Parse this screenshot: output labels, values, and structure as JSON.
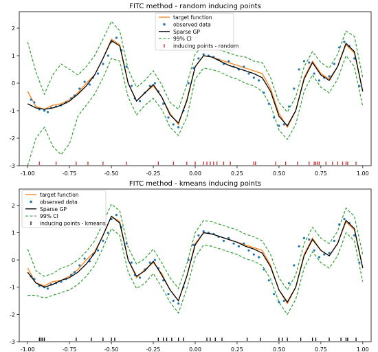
{
  "chart_data": [
    {
      "type": "line",
      "title": "FITC method - random inducing points",
      "xlabel": "",
      "ylabel": "",
      "xlim": [
        -1.05,
        1.05
      ],
      "ylim": [
        -3,
        2.6
      ],
      "xticks": [
        "-1.00",
        "-0.75",
        "-0.50",
        "-0.25",
        "0.00",
        "0.25",
        "0.50",
        "0.75",
        "1.00"
      ],
      "yticks": [
        "-3",
        "-2",
        "-1",
        "0",
        "1",
        "2"
      ],
      "grid": false,
      "legend": {
        "placement": "top-center",
        "entries": [
          "target function",
          "observed data",
          "Sparse GP",
          "99% CI",
          "inducing points - random"
        ]
      },
      "series": [
        {
          "name": "target function",
          "color": "#ff7f0e",
          "x": [
            -1.0,
            -0.95,
            -0.9,
            -0.85,
            -0.8,
            -0.75,
            -0.7,
            -0.65,
            -0.6,
            -0.55,
            -0.5,
            -0.45,
            -0.4,
            -0.35,
            -0.3,
            -0.25,
            -0.2,
            -0.15,
            -0.1,
            -0.05,
            0.0,
            0.05,
            0.1,
            0.15,
            0.2,
            0.25,
            0.3,
            0.35,
            0.4,
            0.45,
            0.5,
            0.55,
            0.6,
            0.65,
            0.7,
            0.75,
            0.8,
            0.85,
            0.9,
            0.95,
            1.0
          ],
          "y": [
            -0.3,
            -0.85,
            -0.95,
            -0.8,
            -0.75,
            -0.6,
            -0.35,
            0.0,
            0.3,
            0.9,
            1.6,
            1.4,
            0.0,
            -0.65,
            -0.35,
            -0.1,
            -0.5,
            -1.1,
            -1.5,
            -0.6,
            0.6,
            1.0,
            0.95,
            0.85,
            0.75,
            0.65,
            0.55,
            0.45,
            0.35,
            -0.2,
            -1.1,
            -1.6,
            -1.0,
            0.2,
            0.8,
            0.35,
            0.15,
            0.6,
            1.4,
            1.1,
            -0.3
          ]
        },
        {
          "name": "Sparse GP",
          "color": "#000000",
          "x": [
            -1.0,
            -0.95,
            -0.9,
            -0.85,
            -0.8,
            -0.75,
            -0.7,
            -0.65,
            -0.6,
            -0.55,
            -0.5,
            -0.45,
            -0.4,
            -0.35,
            -0.3,
            -0.25,
            -0.2,
            -0.15,
            -0.1,
            -0.05,
            0.0,
            0.05,
            0.1,
            0.15,
            0.2,
            0.25,
            0.3,
            0.35,
            0.4,
            0.45,
            0.5,
            0.55,
            0.6,
            0.65,
            0.7,
            0.75,
            0.8,
            0.85,
            0.9,
            0.95,
            1.0
          ],
          "y": [
            -0.75,
            -0.9,
            -0.95,
            -0.9,
            -0.8,
            -0.65,
            -0.4,
            -0.1,
            0.3,
            0.9,
            1.55,
            1.35,
            0.0,
            -0.65,
            -0.35,
            -0.05,
            -0.5,
            -1.15,
            -1.45,
            -0.65,
            0.6,
            1.0,
            0.95,
            0.8,
            0.65,
            0.55,
            0.45,
            0.35,
            0.2,
            -0.3,
            -1.2,
            -1.55,
            -1.0,
            0.15,
            0.75,
            0.3,
            0.1,
            0.6,
            1.45,
            1.15,
            -0.3
          ]
        },
        {
          "name": "99% CI",
          "color": "#2ca02c",
          "style": "dashed",
          "x": [
            -1.0,
            -0.95,
            -0.9,
            -0.85,
            -0.8,
            -0.75,
            -0.7,
            -0.65,
            -0.6,
            -0.55,
            -0.5,
            -0.45,
            -0.4,
            -0.35,
            -0.3,
            -0.25,
            -0.2,
            -0.15,
            -0.1,
            -0.05,
            0.0,
            0.05,
            0.1,
            0.15,
            0.2,
            0.25,
            0.3,
            0.35,
            0.4,
            0.45,
            0.5,
            0.55,
            0.6,
            0.65,
            0.7,
            0.75,
            0.8,
            0.85,
            0.9,
            0.95,
            1.0
          ],
          "upper": [
            1.5,
            0.4,
            -0.4,
            0.3,
            0.7,
            0.5,
            0.3,
            0.6,
            1.0,
            1.6,
            2.25,
            1.9,
            0.5,
            -0.15,
            0.1,
            0.45,
            -0.05,
            -0.7,
            -0.95,
            -0.05,
            1.05,
            1.4,
            1.35,
            1.2,
            1.1,
            1.0,
            0.95,
            0.8,
            0.75,
            0.2,
            -0.7,
            -1.05,
            -0.5,
            0.6,
            1.15,
            0.75,
            0.55,
            1.05,
            1.9,
            1.7,
            0.2
          ],
          "lower": [
            -3.0,
            -2.0,
            -1.6,
            -2.3,
            -2.6,
            -2.2,
            -1.2,
            -0.8,
            -0.4,
            0.2,
            0.9,
            0.8,
            -0.5,
            -1.15,
            -0.8,
            -0.55,
            -0.95,
            -1.6,
            -1.9,
            -1.25,
            0.15,
            0.55,
            0.5,
            0.4,
            0.25,
            0.15,
            0.0,
            -0.1,
            -0.3,
            -0.8,
            -1.7,
            -2.05,
            -1.5,
            -0.3,
            0.3,
            -0.15,
            -0.35,
            0.15,
            1.0,
            0.6,
            -0.85
          ]
        }
      ],
      "observed_data": {
        "name": "observed data",
        "color": "#1f77b4",
        "x": [
          -0.98,
          -0.96,
          -0.93,
          -0.9,
          -0.88,
          -0.86,
          -0.83,
          -0.8,
          -0.77,
          -0.74,
          -0.72,
          -0.69,
          -0.66,
          -0.63,
          -0.61,
          -0.58,
          -0.55,
          -0.52,
          -0.5,
          -0.47,
          -0.44,
          -0.41,
          -0.38,
          -0.36,
          -0.33,
          -0.3,
          -0.27,
          -0.24,
          -0.22,
          -0.19,
          -0.16,
          -0.13,
          -0.1,
          -0.07,
          -0.04,
          -0.01,
          0.02,
          0.05,
          0.08,
          0.11,
          0.14,
          0.17,
          0.2,
          0.23,
          0.26,
          0.29,
          0.32,
          0.35,
          0.38,
          0.41,
          0.44,
          0.47,
          0.5,
          0.53,
          0.56,
          0.59,
          0.62,
          0.65,
          0.68,
          0.71,
          0.74,
          0.77,
          0.8,
          0.83,
          0.86,
          0.89,
          0.92,
          0.95,
          0.98
        ],
        "y": [
          -0.6,
          -0.7,
          -0.95,
          -1.0,
          -1.05,
          -0.9,
          -0.85,
          -0.8,
          -0.7,
          -0.55,
          -0.45,
          -0.2,
          0.05,
          -0.05,
          0.2,
          0.35,
          0.7,
          1.0,
          1.5,
          1.65,
          1.2,
          0.6,
          -0.1,
          -0.55,
          -0.65,
          -0.35,
          -0.1,
          0.0,
          -0.3,
          -0.75,
          -1.25,
          -1.5,
          -1.6,
          -1.0,
          0.0,
          0.55,
          0.9,
          1.05,
          1.0,
          0.95,
          0.85,
          0.7,
          0.8,
          0.6,
          0.5,
          0.6,
          0.35,
          0.2,
          0.1,
          -0.35,
          -0.75,
          -1.25,
          -1.55,
          -1.5,
          -0.85,
          -0.2,
          0.5,
          0.8,
          0.75,
          0.35,
          0.1,
          0.2,
          0.25,
          0.7,
          1.3,
          1.5,
          1.35,
          0.9,
          -0.1
        ]
      },
      "inducing_points": {
        "name": "inducing points - random",
        "color": "#d62728",
        "x": [
          -0.93,
          -0.83,
          -0.71,
          -0.64,
          -0.55,
          -0.41,
          -0.22,
          -0.13,
          -0.05,
          0.0,
          0.05,
          0.07,
          0.09,
          0.11,
          0.13,
          0.17,
          0.21,
          0.35,
          0.36,
          0.48,
          0.54,
          0.61,
          0.68,
          0.71,
          0.72,
          0.73,
          0.74,
          0.78,
          0.82,
          0.85,
          0.88,
          0.9,
          0.91,
          0.96
        ]
      }
    },
    {
      "type": "line",
      "title": "FITC method - kmeans inducing points",
      "xlabel": "",
      "ylabel": "",
      "xlim": [
        -1.05,
        1.05
      ],
      "ylim": [
        -3,
        2.6
      ],
      "xticks": [
        "-1.00",
        "-0.75",
        "-0.50",
        "-0.25",
        "0.00",
        "0.25",
        "0.50",
        "0.75",
        "1.00"
      ],
      "yticks": [
        "-3",
        "-2",
        "-1",
        "0",
        "1",
        "2"
      ],
      "grid": false,
      "legend": {
        "placement": "top-left",
        "entries": [
          "target function",
          "observed data",
          "Sparse GP",
          "99% CI",
          "inducing points - kmeans"
        ]
      },
      "series": [
        {
          "name": "target function",
          "color": "#ff7f0e",
          "x": [
            -1.0,
            -0.95,
            -0.9,
            -0.85,
            -0.8,
            -0.75,
            -0.7,
            -0.65,
            -0.6,
            -0.55,
            -0.5,
            -0.45,
            -0.4,
            -0.35,
            -0.3,
            -0.25,
            -0.2,
            -0.15,
            -0.1,
            -0.05,
            0.0,
            0.05,
            0.1,
            0.15,
            0.2,
            0.25,
            0.3,
            0.35,
            0.4,
            0.45,
            0.5,
            0.55,
            0.6,
            0.65,
            0.7,
            0.75,
            0.8,
            0.85,
            0.9,
            0.95,
            1.0
          ],
          "y": [
            -0.3,
            -0.85,
            -0.95,
            -0.8,
            -0.75,
            -0.6,
            -0.35,
            0.0,
            0.3,
            0.9,
            1.6,
            1.4,
            0.0,
            -0.65,
            -0.35,
            -0.1,
            -0.5,
            -1.1,
            -1.5,
            -0.6,
            0.6,
            1.0,
            0.95,
            0.85,
            0.75,
            0.65,
            0.55,
            0.45,
            0.35,
            -0.2,
            -1.1,
            -1.6,
            -1.0,
            0.2,
            0.8,
            0.35,
            0.15,
            0.6,
            1.4,
            1.1,
            -0.3
          ]
        },
        {
          "name": "Sparse GP",
          "color": "#000000",
          "x": [
            -1.0,
            -0.95,
            -0.9,
            -0.85,
            -0.8,
            -0.75,
            -0.7,
            -0.65,
            -0.6,
            -0.55,
            -0.5,
            -0.45,
            -0.4,
            -0.35,
            -0.3,
            -0.25,
            -0.2,
            -0.15,
            -0.1,
            -0.05,
            0.0,
            0.05,
            0.1,
            0.15,
            0.2,
            0.25,
            0.3,
            0.35,
            0.4,
            0.45,
            0.5,
            0.55,
            0.6,
            0.65,
            0.7,
            0.75,
            0.8,
            0.85,
            0.9,
            0.95,
            1.0
          ],
          "y": [
            -0.45,
            -0.85,
            -1.0,
            -0.9,
            -0.75,
            -0.65,
            -0.45,
            -0.15,
            0.25,
            0.9,
            1.6,
            1.35,
            0.0,
            -0.6,
            -0.4,
            -0.05,
            -0.55,
            -1.1,
            -1.5,
            -0.6,
            0.55,
            1.0,
            0.95,
            0.85,
            0.75,
            0.65,
            0.5,
            0.4,
            0.25,
            -0.25,
            -1.1,
            -1.55,
            -1.0,
            0.15,
            0.75,
            0.35,
            0.15,
            0.6,
            1.45,
            1.15,
            -0.3
          ]
        },
        {
          "name": "99% CI",
          "color": "#2ca02c",
          "style": "dashed",
          "x": [
            -1.0,
            -0.95,
            -0.9,
            -0.85,
            -0.8,
            -0.75,
            -0.7,
            -0.65,
            -0.6,
            -0.55,
            -0.5,
            -0.45,
            -0.4,
            -0.35,
            -0.3,
            -0.25,
            -0.2,
            -0.15,
            -0.1,
            -0.05,
            0.0,
            0.05,
            0.1,
            0.15,
            0.2,
            0.25,
            0.3,
            0.35,
            0.4,
            0.45,
            0.5,
            0.55,
            0.6,
            0.65,
            0.7,
            0.75,
            0.8,
            0.85,
            0.9,
            0.95,
            1.0
          ],
          "upper": [
            0.4,
            -0.4,
            -0.6,
            -0.5,
            -0.3,
            -0.2,
            0.0,
            0.3,
            0.7,
            1.35,
            2.05,
            1.8,
            0.45,
            -0.15,
            0.05,
            0.4,
            -0.1,
            -0.65,
            -1.05,
            -0.15,
            1.0,
            1.45,
            1.4,
            1.3,
            1.2,
            1.1,
            0.95,
            0.85,
            0.7,
            0.2,
            -0.65,
            -1.1,
            -0.55,
            0.6,
            1.2,
            0.8,
            0.6,
            1.05,
            1.9,
            1.6,
            0.2
          ],
          "lower": [
            -1.3,
            -1.3,
            -1.4,
            -1.3,
            -1.2,
            -1.1,
            -0.9,
            -0.6,
            -0.2,
            0.45,
            1.15,
            0.9,
            -0.45,
            -1.05,
            -0.85,
            -0.5,
            -1.0,
            -1.55,
            -1.95,
            -1.05,
            0.1,
            0.55,
            0.5,
            0.4,
            0.3,
            0.2,
            0.05,
            -0.05,
            -0.2,
            -0.7,
            -1.55,
            -2.0,
            -1.45,
            -0.3,
            0.3,
            -0.1,
            -0.3,
            0.15,
            1.0,
            0.7,
            -0.8
          ]
        }
      ],
      "observed_data": {
        "name": "observed data",
        "color": "#1f77b4",
        "x": [
          -0.98,
          -0.96,
          -0.93,
          -0.9,
          -0.88,
          -0.86,
          -0.83,
          -0.8,
          -0.77,
          -0.74,
          -0.72,
          -0.69,
          -0.66,
          -0.63,
          -0.61,
          -0.58,
          -0.55,
          -0.52,
          -0.5,
          -0.47,
          -0.44,
          -0.41,
          -0.38,
          -0.36,
          -0.33,
          -0.3,
          -0.27,
          -0.24,
          -0.22,
          -0.19,
          -0.16,
          -0.13,
          -0.1,
          -0.07,
          -0.04,
          -0.01,
          0.02,
          0.05,
          0.08,
          0.11,
          0.14,
          0.17,
          0.2,
          0.23,
          0.26,
          0.29,
          0.32,
          0.35,
          0.38,
          0.41,
          0.44,
          0.47,
          0.5,
          0.53,
          0.56,
          0.59,
          0.62,
          0.65,
          0.68,
          0.71,
          0.74,
          0.77,
          0.8,
          0.83,
          0.86,
          0.89,
          0.92,
          0.95,
          0.98
        ],
        "y": [
          -0.6,
          -0.7,
          -0.95,
          -1.0,
          -1.05,
          -0.9,
          -0.85,
          -0.8,
          -0.7,
          -0.55,
          -0.45,
          -0.2,
          0.05,
          -0.05,
          0.2,
          0.35,
          0.7,
          1.0,
          1.5,
          1.65,
          1.2,
          0.6,
          -0.1,
          -0.55,
          -0.65,
          -0.35,
          -0.1,
          0.0,
          -0.3,
          -0.75,
          -1.25,
          -1.5,
          -1.6,
          -1.0,
          0.0,
          0.55,
          0.9,
          1.05,
          1.0,
          0.95,
          0.85,
          0.7,
          0.8,
          0.6,
          0.5,
          0.6,
          0.35,
          0.2,
          0.1,
          -0.35,
          -0.75,
          -1.25,
          -1.55,
          -1.5,
          -0.85,
          -0.2,
          0.5,
          0.8,
          0.75,
          0.35,
          0.1,
          0.2,
          0.25,
          0.7,
          1.3,
          1.5,
          1.35,
          0.9,
          -0.1
        ]
      },
      "inducing_points": {
        "name": "inducing points - kmeans",
        "color": "#000000",
        "x": [
          -0.93,
          -0.92,
          -0.91,
          -0.9,
          -0.71,
          -0.62,
          -0.55,
          -0.5,
          -0.48,
          -0.22,
          -0.19,
          -0.17,
          -0.14,
          -0.1,
          -0.07,
          0.07,
          0.09,
          0.12,
          0.16,
          0.31,
          0.39,
          0.5,
          0.52,
          0.55,
          0.63,
          0.7,
          0.72,
          0.8,
          0.87,
          0.9,
          0.91,
          0.96
        ]
      }
    }
  ]
}
